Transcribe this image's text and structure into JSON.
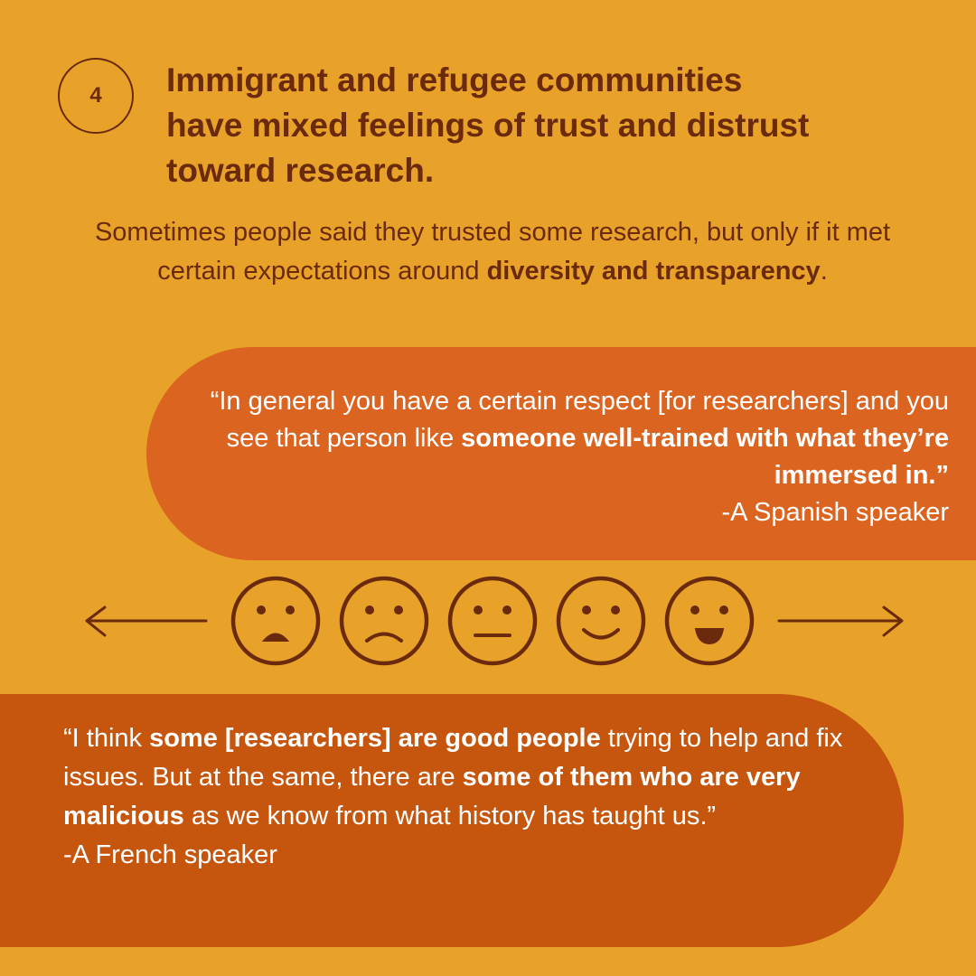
{
  "badge": {
    "number": "4"
  },
  "headline": {
    "line1": "Immigrant and refugee communities",
    "line2": "have mixed feelings of trust and distrust",
    "line3": "toward research."
  },
  "intro": {
    "part1": "Sometimes people said they trusted some research, but only if it met certain expectations around ",
    "bold": "diversity and transparency",
    "part2": "."
  },
  "quote_spanish": {
    "part1": "“In general you have a certain respect [for researchers] and you see that person like ",
    "bold": "someone well-trained with what they’re immersed in.”",
    "attribution": "-A Spanish speaker"
  },
  "quote_french": {
    "part1": "“I think ",
    "bold1": "some [researchers] are good people",
    "part2": " trying to help and fix issues. But at the same, there are ",
    "bold2": "some of them who are very malicious",
    "part3": " as we know from what history has taught us.”",
    "attribution": "-A French speaker"
  },
  "scale": {
    "left_arrow": "arrow-left-icon",
    "right_arrow": "arrow-right-icon",
    "faces": [
      "very-unhappy-face-icon",
      "sad-face-icon",
      "neutral-face-icon",
      "smiling-face-icon",
      "happy-face-icon"
    ]
  },
  "colors": {
    "background": "#E8A229",
    "text_dark": "#6B2A0C",
    "quote1_bg": "#DB6421",
    "quote2_bg": "#C6560E",
    "quote_text": "#FFFFFF"
  }
}
